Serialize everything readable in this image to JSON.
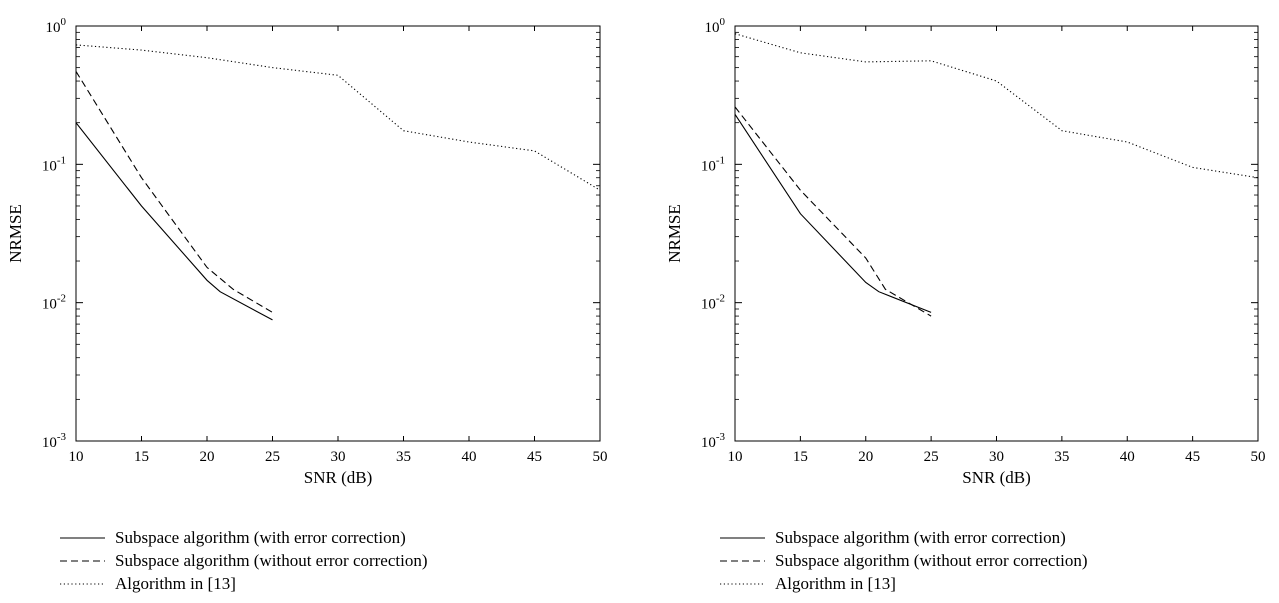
{
  "chart_data": [
    {
      "type": "line",
      "title": "",
      "xlabel": "SNR (dB)",
      "ylabel": "NRMSE",
      "xlim": [
        10,
        50
      ],
      "ylim": [
        0.001,
        1
      ],
      "yscale": "log",
      "xticks": [
        "10",
        "15",
        "20",
        "25",
        "30",
        "35",
        "40",
        "45",
        "50"
      ],
      "yticks": [
        {
          "base": "10",
          "exp": "0"
        },
        {
          "base": "10",
          "exp": "-1"
        },
        {
          "base": "10",
          "exp": "-2"
        },
        {
          "base": "10",
          "exp": "-3"
        }
      ],
      "grid": false,
      "legend_position": "below",
      "series": [
        {
          "name": "Subspace algorithm (with error correction)",
          "style": "solid",
          "x": [
            10,
            15,
            20,
            21,
            25
          ],
          "y": [
            0.2,
            0.05,
            0.0145,
            0.012,
            0.0075
          ]
        },
        {
          "name": "Subspace algorithm (without error correction)",
          "style": "dashed",
          "x": [
            10,
            15,
            20,
            22,
            25
          ],
          "y": [
            0.47,
            0.08,
            0.018,
            0.0125,
            0.0085
          ]
        },
        {
          "name": "Algorithm in [13]",
          "style": "dotted",
          "x": [
            10,
            15,
            20,
            25,
            30,
            35,
            40,
            45,
            50
          ],
          "y": [
            0.73,
            0.67,
            0.59,
            0.5,
            0.44,
            0.175,
            0.145,
            0.125,
            0.065
          ]
        }
      ]
    },
    {
      "type": "line",
      "title": "",
      "xlabel": "SNR (dB)",
      "ylabel": "NRMSE",
      "xlim": [
        10,
        50
      ],
      "ylim": [
        0.001,
        1
      ],
      "yscale": "log",
      "xticks": [
        "10",
        "15",
        "20",
        "25",
        "30",
        "35",
        "40",
        "45",
        "50"
      ],
      "yticks": [
        {
          "base": "10",
          "exp": "0"
        },
        {
          "base": "10",
          "exp": "-1"
        },
        {
          "base": "10",
          "exp": "-2"
        },
        {
          "base": "10",
          "exp": "-3"
        }
      ],
      "grid": false,
      "legend_position": "below",
      "series": [
        {
          "name": "Subspace algorithm (with error correction)",
          "style": "solid",
          "x": [
            10,
            15,
            20,
            21,
            25
          ],
          "y": [
            0.23,
            0.044,
            0.014,
            0.012,
            0.0085
          ]
        },
        {
          "name": "Subspace algorithm (without error correction)",
          "style": "dashed",
          "x": [
            10,
            15,
            20,
            21.5,
            25
          ],
          "y": [
            0.26,
            0.065,
            0.021,
            0.0125,
            0.008
          ]
        },
        {
          "name": "Algorithm in [13]",
          "style": "dotted",
          "x": [
            10,
            15,
            20,
            25,
            30,
            35,
            40,
            45,
            50
          ],
          "y": [
            0.88,
            0.64,
            0.55,
            0.56,
            0.4,
            0.175,
            0.145,
            0.095,
            0.08
          ]
        }
      ]
    }
  ]
}
